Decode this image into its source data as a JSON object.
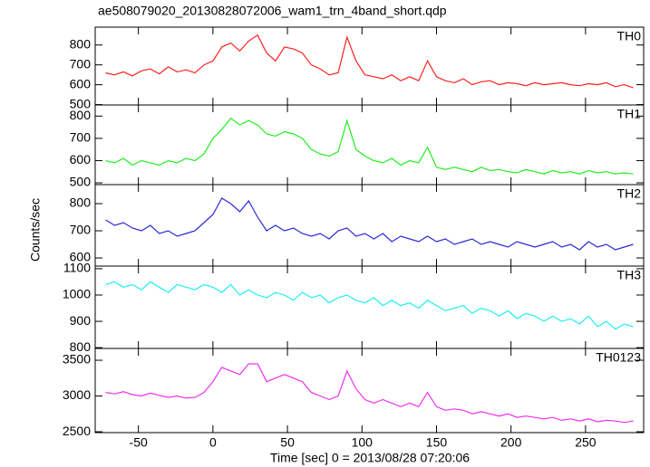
{
  "title": "ae508079020_20130828072006_wam1_trn_4band_short.qdp",
  "xlabel": "Time [sec] 0 = 2013/08/28 07:20:06",
  "ylabel": "Counts/sec",
  "chart_data": [
    {
      "type": "line",
      "label": "TH0",
      "color": "#ff2020",
      "xlim": [
        -79,
        289
      ],
      "xticks": [
        -50,
        0,
        50,
        100,
        150,
        200,
        250
      ],
      "ylim": [
        498,
        890
      ],
      "yticks": [
        500,
        600,
        700,
        800
      ],
      "x": [
        -72,
        -66,
        -60,
        -54,
        -48,
        -42,
        -36,
        -30,
        -24,
        -18,
        -12,
        -6,
        0,
        6,
        12,
        18,
        24,
        30,
        36,
        42,
        48,
        54,
        60,
        66,
        72,
        78,
        84,
        90,
        96,
        102,
        108,
        114,
        120,
        126,
        132,
        138,
        144,
        150,
        156,
        162,
        168,
        174,
        180,
        186,
        192,
        198,
        204,
        210,
        216,
        222,
        228,
        234,
        240,
        246,
        252,
        258,
        264,
        270,
        276,
        282
      ],
      "values": [
        660,
        650,
        665,
        645,
        670,
        680,
        655,
        690,
        665,
        675,
        660,
        700,
        720,
        790,
        810,
        770,
        820,
        850,
        760,
        720,
        790,
        780,
        760,
        700,
        680,
        650,
        660,
        840,
        720,
        650,
        640,
        630,
        650,
        620,
        640,
        620,
        720,
        640,
        620,
        610,
        630,
        600,
        615,
        620,
        600,
        610,
        605,
        595,
        610,
        600,
        605,
        610,
        600,
        595,
        605,
        600,
        610,
        590,
        600,
        585
      ]
    },
    {
      "type": "line",
      "label": "TH1",
      "color": "#20ee20",
      "xlim": [
        -79,
        289
      ],
      "xticks": [
        -50,
        0,
        50,
        100,
        150,
        200,
        250
      ],
      "ylim": [
        492,
        850
      ],
      "yticks": [
        500,
        600,
        700,
        800
      ],
      "x": [
        -72,
        -66,
        -60,
        -54,
        -48,
        -42,
        -36,
        -30,
        -24,
        -18,
        -12,
        -6,
        0,
        6,
        12,
        18,
        24,
        30,
        36,
        42,
        48,
        54,
        60,
        66,
        72,
        78,
        84,
        90,
        96,
        102,
        108,
        114,
        120,
        126,
        132,
        138,
        144,
        150,
        156,
        162,
        168,
        174,
        180,
        186,
        192,
        198,
        204,
        210,
        216,
        222,
        228,
        234,
        240,
        246,
        252,
        258,
        264,
        270,
        276,
        282
      ],
      "values": [
        600,
        590,
        610,
        580,
        600,
        590,
        580,
        600,
        590,
        610,
        600,
        630,
        700,
        740,
        790,
        760,
        780,
        760,
        720,
        710,
        730,
        720,
        700,
        650,
        630,
        620,
        640,
        780,
        650,
        620,
        600,
        590,
        610,
        580,
        600,
        590,
        660,
        570,
        560,
        570,
        560,
        550,
        570,
        555,
        560,
        550,
        545,
        560,
        550,
        540,
        555,
        545,
        550,
        540,
        555,
        545,
        550,
        540,
        545,
        540
      ]
    },
    {
      "type": "line",
      "label": "TH2",
      "color": "#2a2ad8",
      "xlim": [
        -79,
        289
      ],
      "xticks": [
        -50,
        0,
        50,
        100,
        150,
        200,
        250
      ],
      "ylim": [
        570,
        870
      ],
      "yticks": [
        600,
        700,
        800
      ],
      "x": [
        -72,
        -66,
        -60,
        -54,
        -48,
        -42,
        -36,
        -30,
        -24,
        -18,
        -12,
        -6,
        0,
        6,
        12,
        18,
        24,
        30,
        36,
        42,
        48,
        54,
        60,
        66,
        72,
        78,
        84,
        90,
        96,
        102,
        108,
        114,
        120,
        126,
        132,
        138,
        144,
        150,
        156,
        162,
        168,
        174,
        180,
        186,
        192,
        198,
        204,
        210,
        216,
        222,
        228,
        234,
        240,
        246,
        252,
        258,
        264,
        270,
        276,
        282
      ],
      "values": [
        740,
        720,
        730,
        710,
        700,
        720,
        690,
        700,
        680,
        690,
        700,
        730,
        760,
        820,
        800,
        770,
        810,
        750,
        700,
        720,
        700,
        710,
        690,
        680,
        690,
        670,
        700,
        710,
        680,
        690,
        670,
        690,
        660,
        680,
        670,
        660,
        680,
        660,
        670,
        650,
        660,
        670,
        650,
        660,
        650,
        640,
        660,
        650,
        640,
        650,
        660,
        640,
        650,
        630,
        660,
        640,
        650,
        630,
        640,
        650
      ]
    },
    {
      "type": "line",
      "label": "TH3",
      "color": "#20eeee",
      "xlim": [
        -79,
        289
      ],
      "xticks": [
        -50,
        0,
        50,
        100,
        150,
        200,
        250
      ],
      "ylim": [
        797,
        1110
      ],
      "yticks": [
        800,
        900,
        1000,
        1100
      ],
      "x": [
        -72,
        -66,
        -60,
        -54,
        -48,
        -42,
        -36,
        -30,
        -24,
        -18,
        -12,
        -6,
        0,
        6,
        12,
        18,
        24,
        30,
        36,
        42,
        48,
        54,
        60,
        66,
        72,
        78,
        84,
        90,
        96,
        102,
        108,
        114,
        120,
        126,
        132,
        138,
        144,
        150,
        156,
        162,
        168,
        174,
        180,
        186,
        192,
        198,
        204,
        210,
        216,
        222,
        228,
        234,
        240,
        246,
        252,
        258,
        264,
        270,
        276,
        282
      ],
      "values": [
        1040,
        1050,
        1030,
        1040,
        1020,
        1050,
        1030,
        1010,
        1040,
        1030,
        1020,
        1040,
        1030,
        1010,
        1040,
        1000,
        1020,
        1000,
        990,
        1010,
        1000,
        980,
        1010,
        990,
        1000,
        970,
        990,
        1000,
        980,
        970,
        990,
        960,
        980,
        960,
        970,
        950,
        980,
        960,
        940,
        950,
        960,
        930,
        950,
        940,
        920,
        940,
        910,
        930,
        920,
        900,
        920,
        900,
        910,
        890,
        920,
        880,
        900,
        870,
        890,
        880
      ]
    },
    {
      "type": "line",
      "label": "TH0123",
      "color": "#ee30ee",
      "xlim": [
        -79,
        289
      ],
      "xticks": [
        -50,
        0,
        50,
        100,
        150,
        200,
        250
      ],
      "ylim": [
        2488,
        3665
      ],
      "yticks": [
        2500,
        3000,
        3500
      ],
      "x": [
        -72,
        -66,
        -60,
        -54,
        -48,
        -42,
        -36,
        -30,
        -24,
        -18,
        -12,
        -6,
        0,
        6,
        12,
        18,
        24,
        30,
        36,
        42,
        48,
        54,
        60,
        66,
        72,
        78,
        84,
        90,
        96,
        102,
        108,
        114,
        120,
        126,
        132,
        138,
        144,
        150,
        156,
        162,
        168,
        174,
        180,
        186,
        192,
        198,
        204,
        210,
        216,
        222,
        228,
        234,
        240,
        246,
        252,
        258,
        264,
        270,
        276,
        282
      ],
      "values": [
        3050,
        3030,
        3060,
        3020,
        3000,
        3040,
        3010,
        2980,
        3000,
        2970,
        2980,
        3050,
        3200,
        3400,
        3350,
        3300,
        3450,
        3450,
        3200,
        3250,
        3300,
        3250,
        3200,
        3050,
        3000,
        2950,
        3000,
        3350,
        3100,
        2950,
        2900,
        2950,
        2900,
        2850,
        2900,
        2850,
        3050,
        2850,
        2800,
        2820,
        2800,
        2750,
        2780,
        2750,
        2720,
        2750,
        2700,
        2720,
        2700,
        2680,
        2700,
        2660,
        2680,
        2650,
        2680,
        2640,
        2660,
        2650,
        2630,
        2650
      ]
    }
  ]
}
